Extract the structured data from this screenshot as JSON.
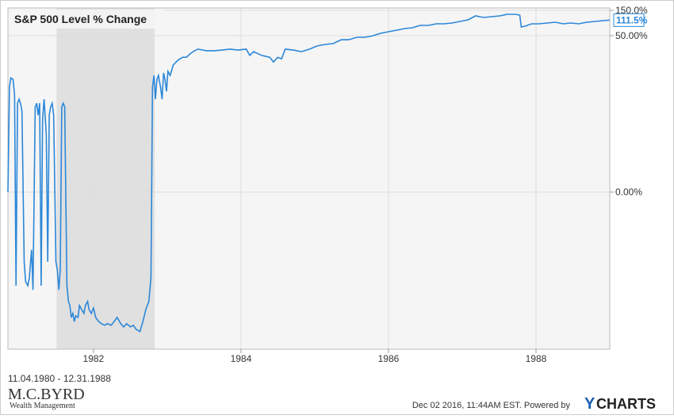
{
  "chart_data": {
    "type": "line",
    "title": "S&P 500 Level % Change",
    "x": [
      1980.84,
      1980.86,
      1980.88,
      1980.91,
      1980.93,
      1980.95,
      1980.97,
      1980.99,
      1981.01,
      1981.03,
      1981.06,
      1981.08,
      1981.11,
      1981.13,
      1981.16,
      1981.18,
      1981.21,
      1981.23,
      1981.25,
      1981.27,
      1981.29,
      1981.31,
      1981.33,
      1981.36,
      1981.38,
      1981.4,
      1981.42,
      1981.44,
      1981.46,
      1981.49,
      1981.51,
      1981.53,
      1981.55,
      1981.57,
      1981.59,
      1981.61,
      1981.64,
      1981.66,
      1981.68,
      1981.7,
      1981.72,
      1981.74,
      1981.76,
      1981.79,
      1981.81,
      1981.84,
      1981.87,
      1981.89,
      1981.92,
      1981.94,
      1981.97,
      1982.0,
      1982.03,
      1982.07,
      1982.11,
      1982.15,
      1982.19,
      1982.24,
      1982.28,
      1982.32,
      1982.37,
      1982.41,
      1982.45,
      1982.5,
      1982.54,
      1982.58,
      1982.63,
      1982.67,
      1982.71,
      1982.75,
      1982.78,
      1982.8,
      1982.82,
      1982.84,
      1982.86,
      1982.88,
      1982.91,
      1982.93,
      1982.95,
      1982.97,
      1982.99,
      1983.01,
      1983.04,
      1983.08,
      1983.12,
      1983.16,
      1983.21,
      1983.26,
      1983.31,
      1983.37,
      1983.42,
      1983.53,
      1983.64,
      1983.74,
      1983.85,
      1983.96,
      1984.07,
      1984.12,
      1984.17,
      1984.28,
      1984.39,
      1984.44,
      1984.5,
      1984.55,
      1984.6,
      1984.71,
      1984.82,
      1984.93,
      1985.03,
      1985.14,
      1985.25,
      1985.36,
      1985.46,
      1985.57,
      1985.68,
      1985.79,
      1985.89,
      1986.0,
      1986.11,
      1986.22,
      1986.32,
      1986.43,
      1986.54,
      1986.65,
      1986.75,
      1986.86,
      1986.97,
      1987.08,
      1987.18,
      1987.29,
      1987.4,
      1987.51,
      1987.61,
      1987.72,
      1987.78,
      1987.8,
      1987.85,
      1987.94,
      1988.04,
      1988.15,
      1988.26,
      1988.37,
      1988.47,
      1988.58,
      1988.69,
      1988.8,
      1988.91,
      1989.0
    ],
    "series": [
      {
        "name": "S&P 500 Level % Change",
        "color": "#2b87d8",
        "values": [
          0,
          33.5,
          36.5,
          36.0,
          31.0,
          -29.8,
          28.4,
          29.7,
          28.4,
          25.9,
          -22.2,
          -28.5,
          -29.8,
          -27.3,
          -18.4,
          -31.1,
          27.2,
          28.4,
          24.6,
          28.4,
          -29.8,
          23.3,
          29.7,
          18.3,
          -22.2,
          24.6,
          27.2,
          28.4,
          24.6,
          -22.2,
          -24.7,
          -31.1,
          -24.7,
          27.2,
          28.4,
          27.2,
          -29.8,
          -34.8,
          -36.1,
          -39.9,
          -38.6,
          -41.2,
          -39.4,
          -39.9,
          -36.1,
          -37.4,
          -38.6,
          -36.1,
          -34.8,
          -37.4,
          -38.6,
          -36.9,
          -39.9,
          -41.2,
          -41.9,
          -42.4,
          -41.9,
          -42.4,
          -41.2,
          -39.9,
          -41.9,
          -42.9,
          -41.9,
          -42.9,
          -42.4,
          -43.7,
          -44.4,
          -41.2,
          -37.4,
          -34.8,
          -27.3,
          33.5,
          37.3,
          29.7,
          36.0,
          37.3,
          33.5,
          29.7,
          38.1,
          36.0,
          32.2,
          38.6,
          37.3,
          40.6,
          41.6,
          42.4,
          43.1,
          43.1,
          44.2,
          45.2,
          45.7,
          45.2,
          45.2,
          45.4,
          45.7,
          45.4,
          45.7,
          43.7,
          44.9,
          43.7,
          43.1,
          41.6,
          43.1,
          42.6,
          45.7,
          45.4,
          44.9,
          45.7,
          46.7,
          47.2,
          47.5,
          48.7,
          48.7,
          49.5,
          49.5,
          50,
          59.4,
          65.6,
          71.9,
          78.1,
          81.3,
          90.6,
          90.6,
          96.9,
          96.9,
          100,
          106.3,
          112.5,
          128.1,
          121.9,
          125,
          128.1,
          134.4,
          134.4,
          131.3,
          84.4,
          87.5,
          96.9,
          96.9,
          100,
          103.1,
          96.9,
          100,
          96.9,
          103.1,
          106.3,
          109.4,
          111.5
        ]
      }
    ],
    "end_label": {
      "value": 111.5,
      "label": "111.5%"
    },
    "xlim": [
      1980.84,
      1989.0
    ],
    "xticks": [
      1982,
      1984,
      1986,
      1988
    ],
    "ylim": [
      -50,
      150
    ],
    "yticks": [
      {
        "value": 0,
        "label": "0.00%"
      },
      {
        "value": 50,
        "label": "50.00%"
      },
      {
        "value": 150,
        "label": "150.0%"
      }
    ],
    "shaded_regions": [
      [
        1981.5,
        1982.83
      ]
    ],
    "date_range": "11.04.1980 - 12.31.1988",
    "grid": true
  },
  "footer": {
    "logo": "M.C.BYRD",
    "logo_subtitle": "Wealth Management",
    "timestamp": "Dec 02 2016, 11:44AM EST.  Powered by",
    "brand_first": "Y",
    "brand_rest": "CHARTS"
  }
}
